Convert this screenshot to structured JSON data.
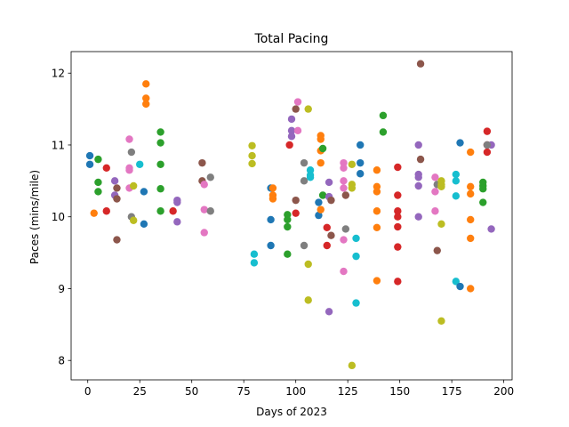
{
  "chart_data": {
    "type": "scatter",
    "title": "Total Pacing",
    "xlabel": "Days of 2023",
    "ylabel": "Paces (mins/mile)",
    "xlim": [
      -8,
      204
    ],
    "ylim": [
      7.73,
      12.3
    ],
    "xticks": [
      0,
      25,
      50,
      75,
      100,
      125,
      150,
      175,
      200
    ],
    "yticks": [
      8,
      9,
      10,
      11,
      12
    ],
    "grid": false,
    "palette": [
      "#1f77b4",
      "#ff7f0e",
      "#2ca02c",
      "#d62728",
      "#9467bd",
      "#8c564b",
      "#e377c2",
      "#7f7f7f",
      "#bcbd22",
      "#17becf"
    ],
    "series": [
      {
        "color": "#1f77b4",
        "points": [
          [
            1,
            10.85
          ],
          [
            1,
            10.73
          ],
          [
            27,
            10.35
          ],
          [
            27,
            9.9
          ],
          [
            88,
            10.4
          ],
          [
            88,
            9.96
          ],
          [
            88,
            9.6
          ],
          [
            111,
            10.02
          ],
          [
            111,
            10.2
          ],
          [
            131,
            10.6
          ],
          [
            131,
            10.75
          ],
          [
            131,
            11.0
          ]
        ]
      },
      {
        "color": "#ff7f0e",
        "points": [
          [
            3,
            10.05
          ],
          [
            28,
            11.85
          ],
          [
            28,
            11.65
          ],
          [
            28,
            11.57
          ],
          [
            89,
            10.4
          ],
          [
            89,
            10.3
          ],
          [
            89,
            10.25
          ],
          [
            112,
            11.13
          ],
          [
            112,
            11.08
          ],
          [
            112,
            10.92
          ],
          [
            112,
            10.75
          ],
          [
            112,
            10.1
          ],
          [
            139,
            10.65
          ],
          [
            139,
            10.42
          ],
          [
            139,
            10.35
          ],
          [
            139,
            10.08
          ],
          [
            139,
            9.85
          ],
          [
            139,
            9.11
          ],
          [
            184,
            10.9
          ],
          [
            184,
            10.42
          ],
          [
            184,
            10.32
          ],
          [
            184,
            9.96
          ],
          [
            184,
            9.7
          ],
          [
            184,
            9.0
          ]
        ]
      },
      {
        "color": "#2ca02c",
        "points": [
          [
            5,
            10.8
          ],
          [
            5,
            10.48
          ],
          [
            5,
            10.35
          ],
          [
            35,
            11.18
          ],
          [
            35,
            11.03
          ],
          [
            35,
            10.73
          ],
          [
            35,
            10.39
          ],
          [
            35,
            10.08
          ],
          [
            96,
            10.03
          ],
          [
            96,
            9.96
          ],
          [
            96,
            9.86
          ],
          [
            96,
            9.48
          ],
          [
            113,
            10.95
          ],
          [
            113,
            10.3
          ],
          [
            142,
            11.41
          ],
          [
            142,
            11.18
          ],
          [
            190,
            10.48
          ],
          [
            190,
            10.43
          ],
          [
            190,
            10.39
          ],
          [
            190,
            10.2
          ]
        ]
      },
      {
        "color": "#d62728",
        "points": [
          [
            9,
            10.68
          ],
          [
            9,
            10.08
          ],
          [
            41,
            10.08
          ],
          [
            97,
            11.0
          ],
          [
            100,
            10.05
          ],
          [
            115,
            9.85
          ],
          [
            115,
            9.6
          ],
          [
            149,
            10.69
          ],
          [
            149,
            10.3
          ],
          [
            149,
            10.08
          ],
          [
            149,
            10.0
          ],
          [
            149,
            9.86
          ],
          [
            149,
            9.58
          ],
          [
            149,
            9.1
          ],
          [
            192,
            11.19
          ],
          [
            192,
            11.0
          ],
          [
            192,
            10.9
          ]
        ]
      },
      {
        "color": "#9467bd",
        "points": [
          [
            13,
            10.5
          ],
          [
            13,
            10.3
          ],
          [
            43,
            10.23
          ],
          [
            43,
            10.2
          ],
          [
            43,
            9.93
          ],
          [
            98,
            11.36
          ],
          [
            98,
            11.2
          ],
          [
            98,
            11.12
          ],
          [
            116,
            10.48
          ],
          [
            116,
            10.28
          ],
          [
            116,
            8.68
          ],
          [
            159,
            11.0
          ],
          [
            159,
            10.59
          ],
          [
            159,
            10.55
          ],
          [
            159,
            10.43
          ],
          [
            159,
            10.0
          ],
          [
            194,
            11.0
          ],
          [
            194,
            9.83
          ]
        ]
      },
      {
        "color": "#8c564b",
        "points": [
          [
            14,
            10.4
          ],
          [
            14,
            10.25
          ],
          [
            14,
            9.68
          ],
          [
            55,
            10.75
          ],
          [
            55,
            10.5
          ],
          [
            100,
            11.5
          ],
          [
            100,
            10.23
          ],
          [
            117,
            10.23
          ],
          [
            117,
            9.74
          ],
          [
            124,
            10.3
          ],
          [
            160,
            12.13
          ],
          [
            160,
            10.8
          ],
          [
            168,
            9.53
          ]
        ]
      },
      {
        "color": "#e377c2",
        "points": [
          [
            20,
            11.08
          ],
          [
            20,
            10.68
          ],
          [
            20,
            10.65
          ],
          [
            20,
            10.4
          ],
          [
            56,
            10.45
          ],
          [
            56,
            10.1
          ],
          [
            56,
            9.78
          ],
          [
            101,
            11.6
          ],
          [
            101,
            11.2
          ],
          [
            123,
            10.75
          ],
          [
            123,
            10.68
          ],
          [
            123,
            10.5
          ],
          [
            123,
            10.4
          ],
          [
            123,
            9.68
          ],
          [
            123,
            9.24
          ],
          [
            167,
            10.55
          ],
          [
            167,
            10.35
          ],
          [
            167,
            10.08
          ]
        ]
      },
      {
        "color": "#7f7f7f",
        "points": [
          [
            21,
            10.9
          ],
          [
            21,
            10.0
          ],
          [
            59,
            10.55
          ],
          [
            59,
            10.08
          ],
          [
            104,
            10.75
          ],
          [
            104,
            10.5
          ],
          [
            104,
            9.6
          ],
          [
            124,
            9.83
          ],
          [
            168,
            10.45
          ],
          [
            192,
            11.0
          ]
        ]
      },
      {
        "color": "#bcbd22",
        "points": [
          [
            22,
            10.43
          ],
          [
            22,
            9.95
          ],
          [
            79,
            10.99
          ],
          [
            79,
            10.85
          ],
          [
            79,
            10.74
          ],
          [
            106,
            11.5
          ],
          [
            106,
            9.34
          ],
          [
            106,
            8.84
          ],
          [
            127,
            10.73
          ],
          [
            127,
            10.45
          ],
          [
            127,
            10.4
          ],
          [
            127,
            7.93
          ],
          [
            170,
            10.5
          ],
          [
            170,
            10.45
          ],
          [
            170,
            10.42
          ],
          [
            170,
            9.9
          ],
          [
            170,
            8.55
          ]
        ]
      },
      {
        "color": "#17becf",
        "points": [
          [
            25,
            10.73
          ],
          [
            80,
            9.48
          ],
          [
            80,
            9.36
          ],
          [
            107,
            10.65
          ],
          [
            107,
            10.58
          ],
          [
            107,
            10.55
          ],
          [
            129,
            9.7
          ],
          [
            129,
            9.45
          ],
          [
            129,
            8.8
          ],
          [
            177,
            10.59
          ],
          [
            177,
            10.5
          ],
          [
            177,
            10.29
          ],
          [
            177,
            9.1
          ]
        ]
      },
      {
        "color": "#1f77b4",
        "points": [
          [
            179,
            11.03
          ],
          [
            179,
            9.03
          ]
        ]
      }
    ]
  }
}
